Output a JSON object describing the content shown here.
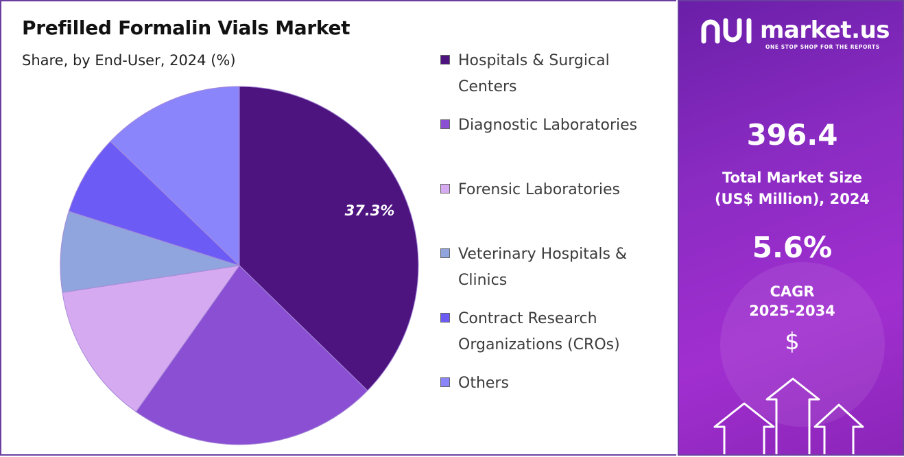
{
  "header": {
    "title": "Prefilled Formalin Vials Market",
    "subtitle": "Share, by End-User, 2024 (%)"
  },
  "chart_data": {
    "type": "pie",
    "title": "Prefilled Formalin Vials Market",
    "subtitle": "Share, by End-User, 2024 (%)",
    "unit": "%",
    "start_angle_deg": 0,
    "direction": "clockwise",
    "slices": [
      {
        "label": "Hospitals & Surgical Centers",
        "value": 37.3,
        "color": "#4d1480",
        "data_label": "37.3%"
      },
      {
        "label": "Diagnostic Laboratories",
        "value": 22.5,
        "color": "#8a4fd2",
        "data_label": ""
      },
      {
        "label": "Forensic Laboratories",
        "value": 12.8,
        "color": "#d6aaf0",
        "data_label": ""
      },
      {
        "label": "Veterinary Hospitals & Clinics",
        "value": 7.3,
        "color": "#90a4de",
        "data_label": ""
      },
      {
        "label": "Contract Research Organizations (CROs)",
        "value": 7.3,
        "color": "#6c5cf5",
        "data_label": ""
      },
      {
        "label": "Others",
        "value": 12.8,
        "color": "#8b85fb",
        "data_label": ""
      }
    ],
    "legend_position": "right"
  },
  "legend": {
    "items": [
      {
        "lines": [
          "Hospitals & Surgical",
          "Centers"
        ],
        "color": "#4d1480"
      },
      {
        "lines": [
          "Diagnostic Laboratories"
        ],
        "color": "#8a4fd2"
      },
      {
        "lines": [
          "Forensic Laboratories"
        ],
        "color": "#d6aaf0"
      },
      {
        "lines": [
          "Veterinary Hospitals &",
          "Clinics"
        ],
        "color": "#90a4de"
      },
      {
        "lines": [
          "Contract Research",
          "Organizations (CROs)"
        ],
        "color": "#6c5cf5"
      },
      {
        "lines": [
          "Others"
        ],
        "color": "#8b85fb"
      }
    ]
  },
  "sidebar": {
    "brand": "market.us",
    "tagline": "ONE STOP SHOP FOR THE REPORTS",
    "market_size_value": "396.4",
    "market_size_label_1": "Total Market Size",
    "market_size_label_2": "(US$ Million), 2024",
    "cagr_value": "5.6%",
    "cagr_label_1": "CAGR",
    "cagr_label_2": "2025-2034",
    "currency_symbol": "$",
    "icons": [
      "dollar-icon",
      "arrow-up-icon"
    ]
  }
}
